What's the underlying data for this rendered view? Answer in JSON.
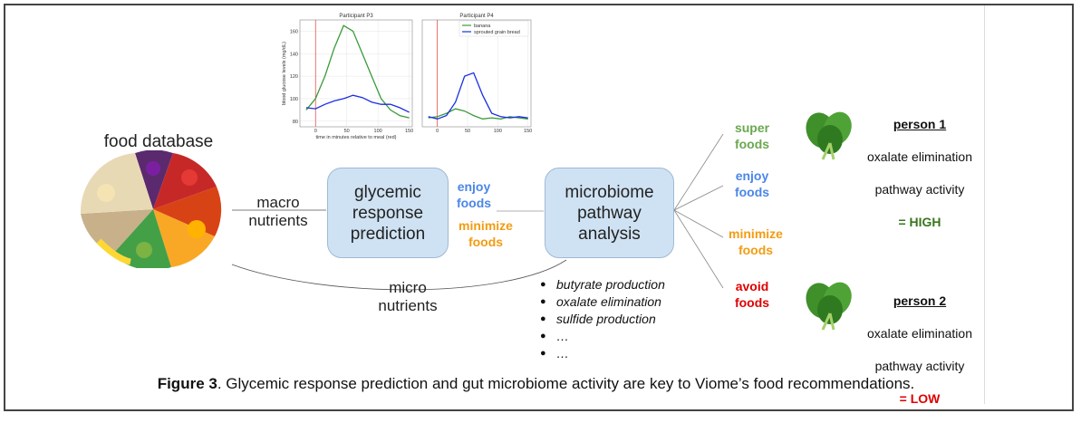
{
  "food_database": {
    "title": "food database"
  },
  "edges": {
    "macro": "macro\nnutrients",
    "micro": "micro\nnutrients"
  },
  "boxes": {
    "glycemic": "glycemic\nresponse\nprediction",
    "microbiome": "microbiome\npathway\nanalysis"
  },
  "glycemic_outputs": {
    "enjoy": "enjoy\nfoods",
    "minimize": "minimize\nfoods"
  },
  "categories": {
    "super": "super\nfoods",
    "enjoy": "enjoy\nfoods",
    "minimize": "minimize\nfoods",
    "avoid": "avoid\nfoods"
  },
  "pathways": [
    "butyrate production",
    "oxalate elimination",
    "sulfide production",
    "…",
    "…"
  ],
  "persons": [
    {
      "title": "person 1",
      "line1": "oxalate elimination",
      "line2": "pathway activity",
      "result": "= HIGH",
      "color": "#38761d"
    },
    {
      "title": "person 2",
      "line1": "oxalate elimination",
      "line2": "pathway activity",
      "result": "= LOW",
      "color": "#e00000"
    }
  ],
  "colors": {
    "super": "#6aa84f",
    "enjoy": "#4a86e8",
    "minimize": "#f39c12",
    "avoid": "#e00000",
    "green_line": "#3a9b3a",
    "blue_line": "#1a2ee0"
  },
  "caption": {
    "bold": "Figure 3",
    "rest": ". Glycemic response prediction and gut microbiome activity are key to Viome’s food recommendations."
  },
  "chart_data": [
    {
      "type": "line",
      "title": "Participant P3",
      "xlabel": "time in minutes relative to meal (red)",
      "ylabel": "blood glucose levels (mg/dL)",
      "xlim": [
        -25,
        155
      ],
      "ylim": [
        75,
        170
      ],
      "xticks": [
        0,
        50,
        100,
        150
      ],
      "yticks": [
        80,
        100,
        120,
        140,
        160
      ],
      "meal_line_x": 0,
      "series": [
        {
          "x": [
            -15,
            0,
            15,
            30,
            45,
            60,
            75,
            90,
            105,
            120,
            135,
            150
          ],
          "values": [
            90,
            100,
            120,
            145,
            165,
            160,
            140,
            120,
            100,
            90,
            85,
            83
          ]
        },
        {
          "x": [
            -15,
            0,
            15,
            30,
            45,
            60,
            75,
            90,
            105,
            120,
            135,
            150
          ],
          "values": [
            92,
            91,
            95,
            98,
            100,
            103,
            101,
            97,
            95,
            95,
            92,
            88
          ]
        }
      ]
    },
    {
      "type": "line",
      "title": "Participant P4",
      "xlabel": "",
      "ylabel": "",
      "xlim": [
        -25,
        155
      ],
      "ylim": [
        70,
        165
      ],
      "xticks": [
        0,
        50,
        100,
        150
      ],
      "yticks": [],
      "meal_line_x": 0,
      "legend": [
        "banana",
        "sprouted grain bread"
      ],
      "series": [
        {
          "name": "banana",
          "x": [
            -15,
            0,
            15,
            30,
            45,
            60,
            75,
            90,
            105,
            120,
            135,
            150
          ],
          "values": [
            78,
            79,
            82,
            86,
            84,
            80,
            77,
            78,
            77,
            79,
            78,
            77
          ]
        },
        {
          "name": "sprouted grain bread",
          "x": [
            -15,
            0,
            15,
            30,
            45,
            60,
            75,
            90,
            105,
            120,
            135,
            150
          ],
          "values": [
            79,
            77,
            80,
            92,
            115,
            118,
            98,
            82,
            79,
            78,
            79,
            78
          ]
        }
      ]
    }
  ]
}
